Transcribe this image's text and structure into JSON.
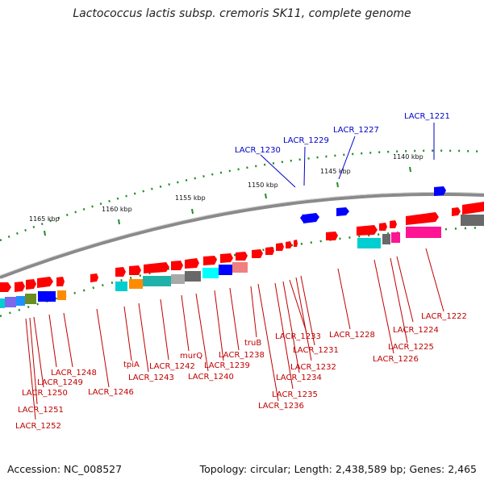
{
  "title": "Lactococcus lactis subsp. cremoris SK11, complete genome",
  "footer": {
    "accession": "Accession: NC_008527",
    "summary": "Topology: circular; Length: 2,438,589 bp; Genes: 2,465"
  },
  "ticks": {
    "kbp_1165": "1165 kbp",
    "kbp_1160": "1160 kbp",
    "kbp_1155": "1155 kbp",
    "kbp_1150": "1150 kbp",
    "kbp_1145": "1145 kbp",
    "kbp_1140": "1140 kbp"
  },
  "colors": {
    "forward_gene": "#ff0000",
    "reverse_gene_blue": "#0000ff",
    "label_red": "#c00000",
    "label_blue": "#0000c8",
    "backbone": "#888888",
    "tick_green": "#228b22"
  },
  "labels": {
    "LACR_1221": "LACR_1221",
    "LACR_1222": "LACR_1222",
    "LACR_1224": "LACR_1224",
    "LACR_1225": "LACR_1225",
    "LACR_1226": "LACR_1226",
    "LACR_1227": "LACR_1227",
    "LACR_1228": "LACR_1228",
    "LACR_1229": "LACR_1229",
    "LACR_1230": "LACR_1230",
    "LACR_1231": "LACR_1231",
    "LACR_1232": "LACR_1232",
    "LACR_1233": "LACR_1233",
    "LACR_1234": "LACR_1234",
    "LACR_1235": "LACR_1235",
    "LACR_1236": "LACR_1236",
    "truB": "truB",
    "LACR_1238": "LACR_1238",
    "LACR_1239": "LACR_1239",
    "LACR_1240": "LACR_1240",
    "murQ": "murQ",
    "LACR_1242": "LACR_1242",
    "LACR_1243": "LACR_1243",
    "tpiA": "tpiA",
    "LACR_1246": "LACR_1246",
    "LACR_1248": "LACR_1248",
    "LACR_1249": "LACR_1249",
    "LACR_1250": "LACR_1250",
    "LACR_1251": "LACR_1251",
    "LACR_1252": "LACR_1252"
  }
}
